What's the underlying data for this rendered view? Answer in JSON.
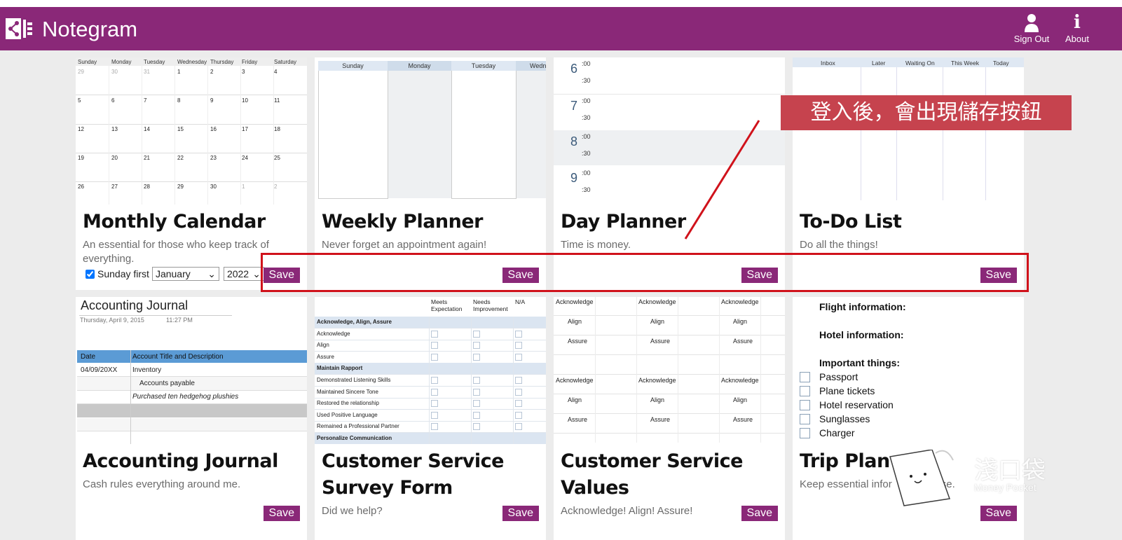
{
  "app": {
    "title": "Notegram"
  },
  "header": {
    "signout_label": "Sign Out",
    "about_label": "About"
  },
  "annotation": {
    "callout_text": "登入後，會出現儲存按鈕"
  },
  "cards": [
    {
      "title": "Monthly Calendar",
      "description": "An essential for those who keep track of everything.",
      "save_label": "Save",
      "sunday_first_label": "Sunday first",
      "month_value": "January",
      "year_value": "2022",
      "weekdays": [
        "Sunday",
        "Monday",
        "Tuesday",
        "Wednesday",
        "Thursday",
        "Friday",
        "Saturday"
      ],
      "weeks": [
        [
          "29",
          "30",
          "31",
          "1",
          "2",
          "3",
          "4"
        ],
        [
          "5",
          "6",
          "7",
          "8",
          "9",
          "10",
          "11"
        ],
        [
          "12",
          "13",
          "14",
          "15",
          "16",
          "17",
          "18"
        ],
        [
          "19",
          "20",
          "21",
          "22",
          "23",
          "24",
          "25"
        ],
        [
          "26",
          "27",
          "28",
          "29",
          "30",
          "1",
          "2"
        ]
      ]
    },
    {
      "title": "Weekly Planner",
      "description": "Never forget an appointment again!",
      "save_label": "Save",
      "days": [
        "Sunday",
        "Monday",
        "Tuesday",
        "Wedne"
      ]
    },
    {
      "title": "Day Planner",
      "description": "Time is money.",
      "save_label": "Save",
      "hours": [
        "6",
        "7",
        "8",
        "9"
      ],
      "min00": ":00",
      "min30": ":30"
    },
    {
      "title": "To-Do List",
      "description": "Do all the things!",
      "save_label": "Save",
      "columns": [
        "Inbox",
        "Later",
        "Waiting On",
        "This Week",
        "Today"
      ]
    },
    {
      "title": "Accounting Journal",
      "description": "Cash rules everything around me.",
      "save_label": "Save",
      "thumb_title": "Accounting Journal",
      "thumb_date": "Thursday, April 9, 2015",
      "thumb_time": "11:27 PM",
      "col_date": "Date",
      "col_desc": "Account Title and Description",
      "row_date": "04/09/20XX",
      "row1": "Inventory",
      "row2": "Accounts payable",
      "row3": "Purchased ten hedgehog plushies"
    },
    {
      "title": "Customer Service Survey Form",
      "title_line1": "Customer Service",
      "title_line2": "Survey Form",
      "description": "Did we help?",
      "save_label": "Save",
      "col_meets": "Meets Expectation",
      "col_needs": "Needs Improvement",
      "col_na": "N/A",
      "rows": [
        "Acknowledge, Align, Assure",
        "Acknowledge",
        "Align",
        "Assure",
        "Maintain Rapport",
        "Demonstrated Listening Skills",
        "Maintained Sincere Tone",
        "Restored the relationship",
        "Used Positive Language",
        "Remained a Professional Partner",
        "Personalize Communication"
      ]
    },
    {
      "title": "Customer Service Values",
      "title_line1": "Customer Service",
      "title_line2": "Values",
      "description": "Acknowledge! Align! Assure!",
      "save_label": "Save",
      "words": [
        "Acknowledge",
        "Align",
        "Assure"
      ]
    },
    {
      "title": "Trip Planner",
      "title_visible": "Trip Plan",
      "description": "Keep essential information close.",
      "description_visible": "Keep essential infor",
      "description_tail": "se.",
      "save_label": "Save",
      "flight": "Flight information:",
      "hotel": "Hotel information:",
      "important": "Important things:",
      "items": [
        "Passport",
        "Plane tickets",
        "Hotel reservation",
        "Sunglasses",
        "Charger"
      ]
    }
  ],
  "watermark": {
    "chinese": "淺口袋",
    "english": "Money Pocket"
  }
}
